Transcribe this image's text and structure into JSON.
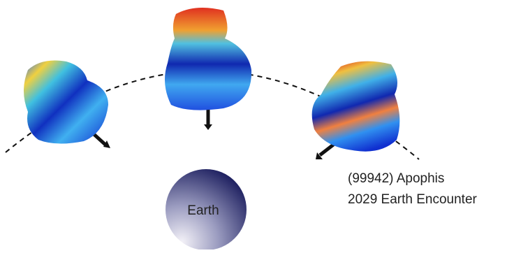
{
  "earth": {
    "label": "Earth"
  },
  "caption": {
    "lines": [
      "(99942) Apophis",
      "2029 Earth Encounter"
    ]
  }
}
